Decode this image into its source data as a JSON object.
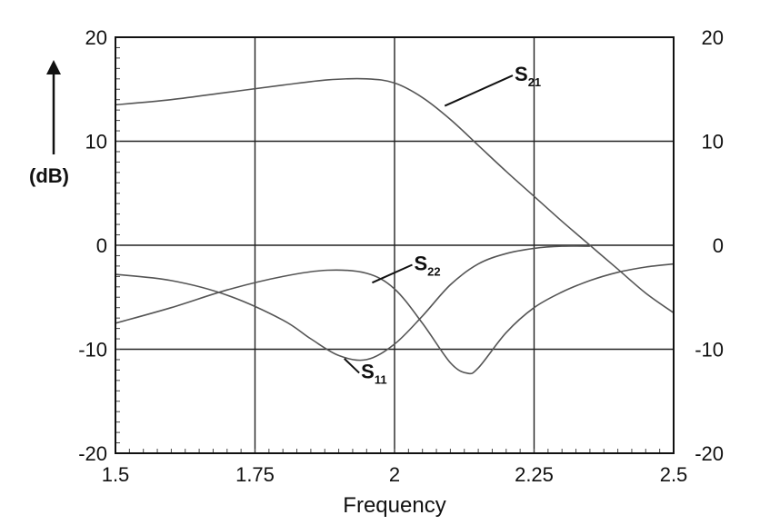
{
  "chart_data": {
    "type": "line",
    "title": "",
    "xlabel": "Frequency",
    "ylabel": "(dB)",
    "xlim": [
      1.5,
      2.5
    ],
    "ylim": [
      -20,
      20
    ],
    "x_ticks": [
      "1.5",
      "1.75",
      "2",
      "2.25",
      "2.5"
    ],
    "y_ticks_left": [
      "20",
      "10",
      "0",
      "-10",
      "-20"
    ],
    "y_ticks_right": [
      "20",
      "10",
      "0",
      "-10",
      "-20"
    ],
    "grid": true,
    "series": [
      {
        "name": "S21",
        "name_main": "S",
        "name_sub": "21",
        "color": "#555555",
        "x": [
          1.5,
          1.6,
          1.7,
          1.8,
          1.88,
          1.95,
          2.0,
          2.05,
          2.1,
          2.15,
          2.2,
          2.25,
          2.3,
          2.35,
          2.4,
          2.45,
          2.5
        ],
        "y": [
          13.5,
          14.0,
          14.7,
          15.4,
          15.9,
          16.0,
          15.6,
          14.2,
          12.1,
          9.6,
          7.1,
          4.7,
          2.3,
          0.0,
          -2.3,
          -4.6,
          -6.5
        ]
      },
      {
        "name": "S22",
        "name_main": "S",
        "name_sub": "22",
        "color": "#555555",
        "x": [
          1.5,
          1.6,
          1.7,
          1.8,
          1.88,
          1.95,
          2.0,
          2.05,
          2.1,
          2.13,
          2.15,
          2.2,
          2.25,
          2.3,
          2.35,
          2.4,
          2.45,
          2.5
        ],
        "y": [
          -7.5,
          -6.0,
          -4.3,
          -3.0,
          -2.4,
          -2.7,
          -4.2,
          -7.5,
          -11.3,
          -12.3,
          -11.8,
          -8.4,
          -6.0,
          -4.5,
          -3.4,
          -2.6,
          -2.1,
          -1.8
        ]
      },
      {
        "name": "S11",
        "name_main": "S",
        "name_sub": "11",
        "color": "#555555",
        "x": [
          1.5,
          1.6,
          1.7,
          1.8,
          1.85,
          1.9,
          1.95,
          2.0,
          2.05,
          2.1,
          2.15,
          2.2,
          2.25,
          2.3,
          2.35
        ],
        "y": [
          -2.8,
          -3.4,
          -4.8,
          -7.2,
          -9.0,
          -10.6,
          -11.0,
          -9.5,
          -6.8,
          -3.8,
          -1.8,
          -0.8,
          -0.3,
          -0.1,
          -0.1
        ]
      }
    ],
    "labels": [
      {
        "series": "S21",
        "at_x": 2.09,
        "at_y": 13.4,
        "text_x": 2.215,
        "text_y": 15.8
      },
      {
        "series": "S22",
        "at_x": 1.96,
        "at_y": -3.6,
        "text_x": 2.035,
        "text_y": -2.4
      },
      {
        "series": "S11",
        "at_x": 1.91,
        "at_y": -10.9,
        "text_x": 1.94,
        "text_y": -12.8
      }
    ]
  }
}
